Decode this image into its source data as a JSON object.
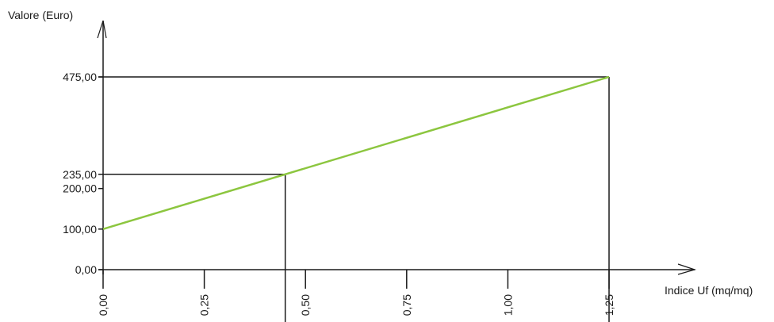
{
  "chart_data": {
    "type": "line",
    "xlabel": "Indice Uf (mq/mq)",
    "ylabel": "Valore (Euro)",
    "xlim": [
      0,
      1.25
    ],
    "ylim": [
      0,
      475
    ],
    "grid": false,
    "x_ticks": [
      {
        "value": 0,
        "label": "0,00"
      },
      {
        "value": 0.25,
        "label": "0,25"
      },
      {
        "value": 0.5,
        "label": "0,50"
      },
      {
        "value": 0.75,
        "label": "0,75"
      },
      {
        "value": 1.0,
        "label": "1,00"
      },
      {
        "value": 1.25,
        "label": "1,25"
      }
    ],
    "y_ticks": [
      {
        "value": 0,
        "label": "0,00",
        "color": "#1a1a1a"
      },
      {
        "value": 100,
        "label": "100,00",
        "color": "#2a5db0"
      },
      {
        "value": 200,
        "label": "200,00",
        "color": "#1a1a1a"
      },
      {
        "value": 235,
        "label": "235,00",
        "color": "#e0332c"
      },
      {
        "value": 475,
        "label": "475,00",
        "color": "#1a1a1a"
      }
    ],
    "series": [
      {
        "color": "#8cc63f",
        "x": [
          0,
          1.25
        ],
        "y": [
          100,
          475
        ]
      }
    ],
    "reference_points": [
      {
        "x": 0.45,
        "y": 235
      },
      {
        "x": 1.25,
        "y": 475
      }
    ]
  }
}
